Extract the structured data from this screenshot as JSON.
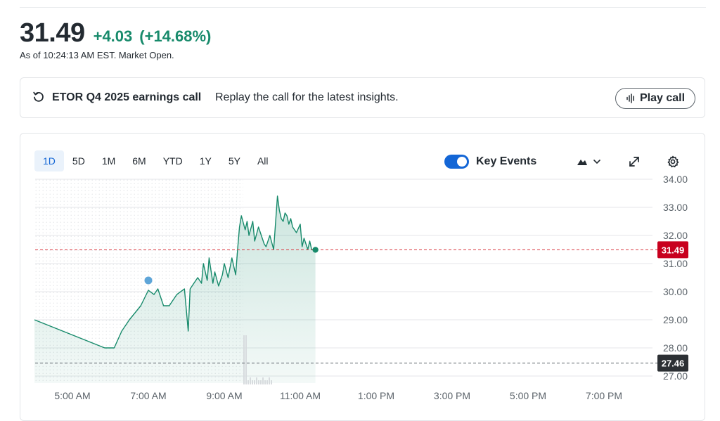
{
  "quote": {
    "price": "31.49",
    "change": "+4.03",
    "change_pct": "(+14.68%)",
    "as_of": "As of 10:24:13 AM EST. Market Open."
  },
  "banner": {
    "title": "ETOR Q4 2025 earnings call",
    "description": "Replay the call for the latest insights.",
    "play_label": "Play call"
  },
  "chart": {
    "ranges": [
      "1D",
      "5D",
      "1M",
      "6M",
      "YTD",
      "1Y",
      "5Y",
      "All"
    ],
    "active_range": "1D",
    "key_events_label": "Key Events",
    "key_events_on": true,
    "colors": {
      "line": "#178a6b",
      "current": "#c8001e",
      "prev_close": "#2c3034",
      "event": "#5ea5d8"
    }
  },
  "chart_data": {
    "type": "area",
    "y_ticks": [
      "34.00",
      "33.00",
      "32.00",
      "31.00",
      "30.00",
      "29.00",
      "28.00",
      "27.00"
    ],
    "x_ticks": [
      "5:00 AM",
      "7:00 AM",
      "9:00 AM",
      "11:00 AM",
      "1:00 PM",
      "3:00 PM",
      "5:00 PM",
      "7:00 PM"
    ],
    "ylim": [
      27.0,
      34.0
    ],
    "current_price": 31.49,
    "current_label": "31.49",
    "previous_close": 27.46,
    "previous_close_label": "27.46",
    "key_event": {
      "time_hours": 7.0,
      "value": 30.4
    },
    "series": [
      {
        "x_hours": [
          4.0,
          5.85,
          6.1,
          6.3,
          6.5,
          6.8,
          7.0,
          7.15,
          7.25,
          7.4,
          7.55,
          7.75,
          7.95,
          8.05,
          8.1,
          8.15,
          8.3,
          8.4,
          8.45,
          8.55,
          8.6,
          8.7,
          8.75,
          8.85,
          8.95,
          9.0,
          9.1,
          9.2,
          9.3,
          9.35,
          9.4,
          9.45,
          9.55,
          9.6,
          9.65,
          9.75,
          9.8,
          9.9,
          10.0,
          10.05,
          10.1,
          10.2,
          10.3,
          10.4,
          10.45,
          10.5,
          10.55,
          10.6,
          10.65,
          10.7,
          10.75,
          10.8,
          10.9,
          11.0,
          11.05,
          11.1,
          11.2,
          11.25,
          11.3,
          11.4
        ],
        "values": [
          29.0,
          28.0,
          28.0,
          28.6,
          29.0,
          29.5,
          30.05,
          29.9,
          30.1,
          29.5,
          29.5,
          29.9,
          30.1,
          28.6,
          30.1,
          30.2,
          30.5,
          30.3,
          31.0,
          30.4,
          31.2,
          30.3,
          30.7,
          30.2,
          30.6,
          31.0,
          30.5,
          31.2,
          30.6,
          31.5,
          32.3,
          32.7,
          32.2,
          32.5,
          32.0,
          32.5,
          31.8,
          32.3,
          31.9,
          31.7,
          31.6,
          32.0,
          31.5,
          33.4,
          32.9,
          32.6,
          32.5,
          32.8,
          32.7,
          32.4,
          32.6,
          32.3,
          32.1,
          32.4,
          31.6,
          31.9,
          31.5,
          31.8,
          31.5,
          31.49
        ]
      }
    ]
  }
}
